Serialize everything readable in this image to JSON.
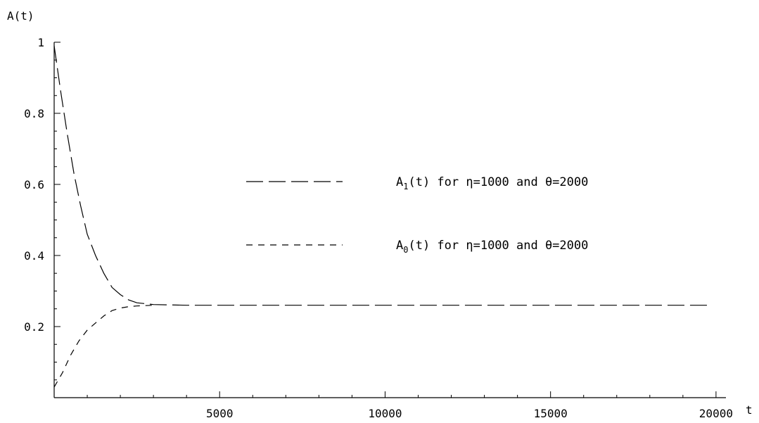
{
  "chart_data": {
    "type": "line",
    "xlabel": "t",
    "ylabel": "A(t)",
    "xlim": [
      0,
      20300
    ],
    "ylim": [
      0,
      1
    ],
    "x_ticks": [
      5000,
      10000,
      15000,
      20000
    ],
    "x_tick_labels": [
      "5000",
      "10000",
      "15000",
      "20000"
    ],
    "y_ticks": [
      0.2,
      0.4,
      0.6,
      0.8,
      1
    ],
    "y_tick_labels": [
      "0.2",
      "0.4",
      "0.6",
      "0.8",
      "1"
    ],
    "grid": false,
    "legend_position": "right",
    "series": [
      {
        "name": "A1(t) for η=1000 and θ=2000",
        "label_main": "A",
        "label_sub": "1",
        "label_rest": "(t)  for  η=1000  and  θ=2000",
        "dash": "long",
        "x": [
          0,
          200,
          400,
          600,
          800,
          1000,
          1250,
          1500,
          1750,
          2000,
          2250,
          2500,
          3000,
          4000,
          5000,
          10000,
          15000,
          19800
        ],
        "y": [
          0.99,
          0.86,
          0.74,
          0.63,
          0.54,
          0.46,
          0.4,
          0.35,
          0.31,
          0.29,
          0.275,
          0.267,
          0.262,
          0.26,
          0.26,
          0.26,
          0.26,
          0.26
        ]
      },
      {
        "name": "A0(t) for η=1000 and θ=2000",
        "label_main": "A",
        "label_sub": "0",
        "label_rest": "(t)  for  η=1000  and  θ=2000",
        "dash": "short",
        "x": [
          0,
          250,
          500,
          750,
          1000,
          1250,
          1500,
          1750,
          2000,
          2250,
          2500,
          2750,
          3000
        ],
        "y": [
          0.03,
          0.07,
          0.12,
          0.16,
          0.19,
          0.21,
          0.23,
          0.245,
          0.252,
          0.256,
          0.258,
          0.259,
          0.26
        ]
      }
    ]
  }
}
